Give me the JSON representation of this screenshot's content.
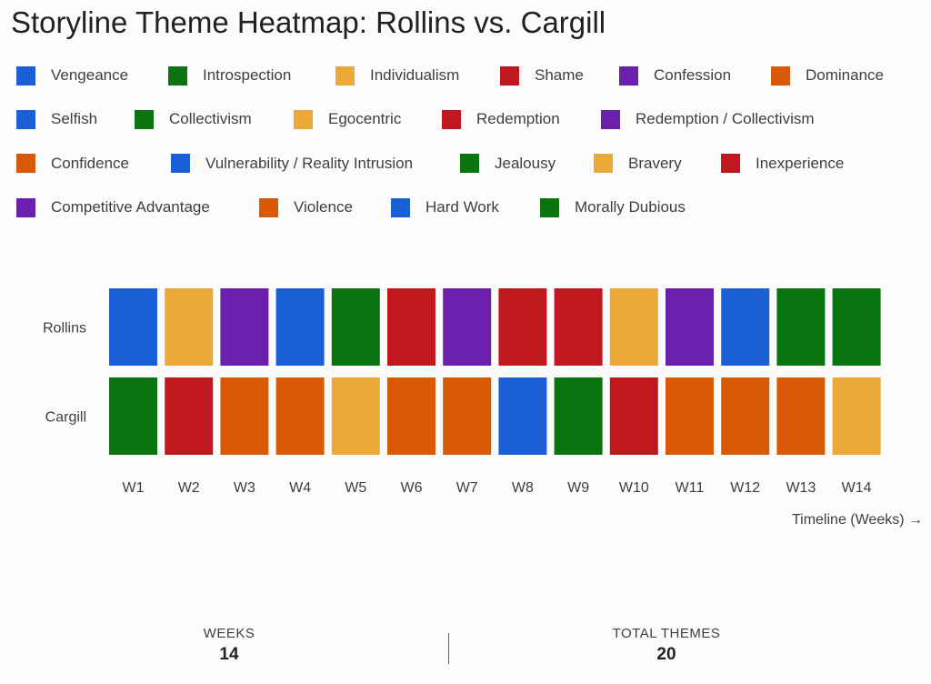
{
  "title": "Storyline Theme Heatmap: Rollins vs. Cargill",
  "theme_colors": {
    "blue": "#1a5fd6",
    "green": "#0b7310",
    "yellow": "#eba93a",
    "red": "#c0181f",
    "purple": "#6a1fad",
    "orange": "#d95a06"
  },
  "legend": [
    [
      {
        "label": "Vengeance",
        "color": "#1a5fd6"
      },
      {
        "label": "Introspection",
        "color": "#0b7310"
      },
      {
        "label": "Individualism",
        "color": "#eba93a"
      },
      {
        "label": "Shame",
        "color": "#c0181f"
      },
      {
        "label": "Confession",
        "color": "#6a1fad"
      },
      {
        "label": "Dominance",
        "color": "#d95a06"
      }
    ],
    [
      {
        "label": "Selfish",
        "color": "#1a5fd6"
      },
      {
        "label": "Collectivism",
        "color": "#0b7310"
      },
      {
        "label": "Egocentric",
        "color": "#eba93a"
      },
      {
        "label": "Redemption",
        "color": "#c0181f"
      },
      {
        "label": "Redemption / Collectivism",
        "color": "#6a1fad"
      }
    ],
    [
      {
        "label": "Confidence",
        "color": "#d95a06"
      },
      {
        "label": "Vulnerability / Reality Intrusion",
        "color": "#1a5fd6"
      },
      {
        "label": "Jealousy",
        "color": "#0b7310"
      },
      {
        "label": "Bravery",
        "color": "#eba93a"
      },
      {
        "label": "Inexperience",
        "color": "#c0181f"
      }
    ],
    [
      {
        "label": "Competitive Advantage",
        "color": "#6a1fad"
      },
      {
        "label": "Violence",
        "color": "#d95a06"
      },
      {
        "label": "Hard Work",
        "color": "#1a5fd6"
      },
      {
        "label": "Morally Dubious",
        "color": "#0b7310"
      }
    ]
  ],
  "chart_data": {
    "type": "heatmap",
    "x": [
      "W1",
      "W2",
      "W3",
      "W4",
      "W5",
      "W6",
      "W7",
      "W8",
      "W9",
      "W10",
      "W11",
      "W12",
      "W13",
      "W14"
    ],
    "xlabel": "Timeline (Weeks) →",
    "series": [
      {
        "name": "Rollins",
        "colors": [
          "#1a5fd6",
          "#eba93a",
          "#6a1fad",
          "#1a5fd6",
          "#0b7310",
          "#c0181f",
          "#6a1fad",
          "#c0181f",
          "#c0181f",
          "#eba93a",
          "#6a1fad",
          "#1a5fd6",
          "#0b7310",
          "#0b7310"
        ]
      },
      {
        "name": "Cargill",
        "colors": [
          "#0b7310",
          "#c0181f",
          "#d95a06",
          "#d95a06",
          "#eba93a",
          "#d95a06",
          "#d95a06",
          "#1a5fd6",
          "#0b7310",
          "#c0181f",
          "#d95a06",
          "#d95a06",
          "#d95a06",
          "#eba93a"
        ]
      }
    ]
  },
  "stats": {
    "weeks_label": "WEEKS",
    "weeks_value": "14",
    "themes_label": "TOTAL THEMES",
    "themes_value": "20"
  }
}
